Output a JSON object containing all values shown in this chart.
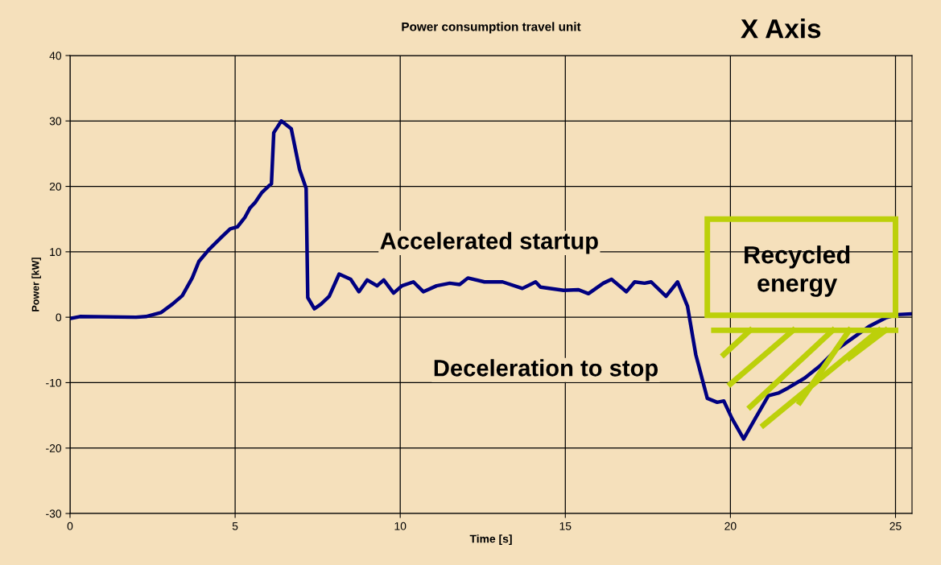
{
  "chart_data": {
    "type": "line",
    "title": "Power consumption travel unit",
    "xlabel": "Time [s]",
    "ylabel": "Power [kW]",
    "xlim": [
      0,
      25.5
    ],
    "xticks": [
      0,
      5,
      10,
      15,
      20,
      25
    ],
    "ylim": [
      -30,
      40
    ],
    "yticks": [
      -30,
      -20,
      -10,
      0,
      10,
      20,
      30,
      40
    ],
    "grid": true,
    "legend": false,
    "marker": "none",
    "line_style": "solid",
    "annotations": [
      "X Axis",
      "Accelerated startup",
      "Deceleration to stop",
      "Recycled energy"
    ],
    "series": [
      {
        "color": "#000080",
        "x": [
          0,
          0.3,
          2.0,
          2.3,
          2.75,
          3.1,
          3.4,
          3.7,
          3.9,
          4.2,
          4.6,
          4.85,
          5.07,
          5.3,
          5.45,
          5.6,
          5.8,
          6.05,
          6.1,
          6.17,
          6.4,
          6.7,
          6.95,
          7.15,
          7.2,
          7.4,
          7.6,
          7.85,
          8.15,
          8.5,
          8.75,
          9.0,
          9.3,
          9.5,
          9.8,
          10.05,
          10.4,
          10.7,
          11.1,
          11.5,
          11.8,
          12.05,
          12.55,
          13.1,
          13.7,
          14.1,
          14.25,
          14.95,
          15.4,
          15.7,
          16.15,
          16.4,
          16.85,
          17.1,
          17.4,
          17.6,
          18.05,
          18.4,
          18.7,
          18.95,
          19.3,
          19.6,
          19.8,
          20.05,
          20.4,
          20.75,
          21.15,
          21.45,
          21.75,
          22.25,
          22.7,
          23.2,
          23.7,
          24.2,
          24.7,
          25.05,
          25.5
        ],
        "values": [
          -0.2,
          0.1,
          0,
          0.1,
          0.7,
          2,
          3.3,
          6,
          8.5,
          10.3,
          12.3,
          13.5,
          13.8,
          15.3,
          16.7,
          17.5,
          19,
          20.2,
          20.4,
          28.2,
          30,
          28.8,
          22.6,
          19.7,
          3,
          1.3,
          2,
          3.2,
          6.6,
          5.8,
          3.9,
          5.7,
          4.8,
          5.7,
          3.7,
          4.8,
          5.4,
          3.9,
          4.8,
          5.2,
          5,
          6,
          5.4,
          5.4,
          4.4,
          5.4,
          4.6,
          4.1,
          4.2,
          3.6,
          5.2,
          5.8,
          3.9,
          5.4,
          5.2,
          5.4,
          3.2,
          5.4,
          1.7,
          -5.7,
          -12.4,
          -13,
          -12.8,
          -15.5,
          -18.6,
          -15.5,
          -12,
          -11.6,
          -10.8,
          -9.3,
          -7.5,
          -5,
          -3.2,
          -1.4,
          -0.1,
          0.4,
          0.5
        ]
      }
    ]
  }
}
